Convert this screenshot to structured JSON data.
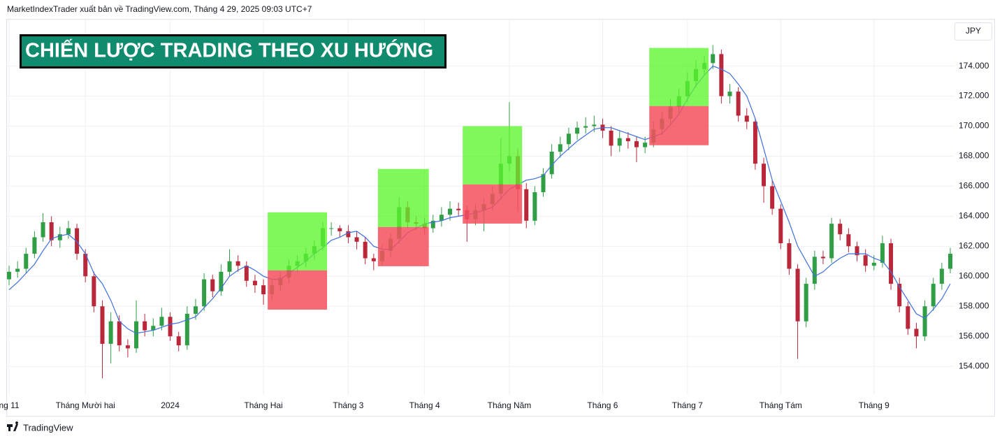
{
  "header": {
    "attribution": "MarketIndexTrader xuất bản về TradingView.com, Tháng 4 29, 2025 09:03 UTC+7"
  },
  "footer": {
    "logo_text": "TradingView"
  },
  "chart_data": {
    "type": "candlestick",
    "title": "CHIẾN LƯỢC TRADING THEO XU HƯỚNG",
    "currency": "JPY",
    "up_color": "#2f9e44",
    "down_color": "#b8283a",
    "ylim": [
      152.1,
      177.1
    ],
    "yticks": [
      {
        "value": 154,
        "label": "154.000"
      },
      {
        "value": 156,
        "label": "156.000"
      },
      {
        "value": 158,
        "label": "158.000"
      },
      {
        "value": 160,
        "label": "160.000"
      },
      {
        "value": 162,
        "label": "162.000"
      },
      {
        "value": 164,
        "label": "164.000"
      },
      {
        "value": 166,
        "label": "166.000"
      },
      {
        "value": 168,
        "label": "168.000"
      },
      {
        "value": 170,
        "label": "170.000"
      },
      {
        "value": 172,
        "label": "172.000"
      },
      {
        "value": 174,
        "label": "174.000"
      }
    ],
    "grid": true,
    "categories": [
      "ng 11",
      null,
      null,
      null,
      null,
      null,
      null,
      null,
      null,
      "Tháng Mười hai",
      null,
      null,
      null,
      null,
      null,
      null,
      null,
      null,
      null,
      "2024",
      null,
      null,
      null,
      null,
      null,
      null,
      null,
      null,
      null,
      null,
      "Tháng Hai",
      null,
      null,
      null,
      null,
      null,
      null,
      null,
      null,
      null,
      "Tháng 3",
      null,
      null,
      null,
      null,
      null,
      null,
      null,
      null,
      "Tháng 4",
      null,
      null,
      null,
      null,
      null,
      null,
      null,
      null,
      null,
      "Tháng Năm",
      null,
      null,
      null,
      null,
      null,
      null,
      null,
      null,
      null,
      null,
      "Tháng 6",
      null,
      null,
      null,
      null,
      null,
      null,
      null,
      null,
      null,
      "Tháng 7",
      null,
      null,
      null,
      null,
      null,
      null,
      null,
      null,
      null,
      null,
      "Tháng Tám",
      null,
      null,
      null,
      null,
      null,
      null,
      null,
      null,
      null,
      null,
      "Tháng 9",
      null,
      null,
      null,
      null,
      null,
      null,
      null,
      null,
      null
    ],
    "ohlc": [
      [
        159.8,
        160.7,
        159.4,
        160.3
      ],
      [
        160.3,
        161.0,
        159.9,
        160.5
      ],
      [
        160.5,
        161.9,
        160.2,
        161.5
      ],
      [
        161.5,
        163.0,
        161.2,
        162.6
      ],
      [
        162.6,
        164.2,
        162.3,
        163.6
      ],
      [
        163.6,
        164.0,
        162.0,
        162.4
      ],
      [
        162.4,
        163.3,
        161.9,
        162.8
      ],
      [
        162.8,
        163.7,
        162.5,
        163.2
      ],
      [
        163.2,
        163.5,
        161.1,
        161.5
      ],
      [
        161.5,
        161.8,
        159.6,
        160.0
      ],
      [
        160.0,
        160.3,
        157.6,
        158.0
      ],
      [
        158.0,
        158.4,
        153.2,
        155.5
      ],
      [
        155.5,
        157.6,
        154.2,
        157.0
      ],
      [
        157.0,
        157.4,
        155.0,
        155.4
      ],
      [
        155.4,
        155.8,
        154.6,
        155.2
      ],
      [
        155.2,
        158.4,
        154.9,
        157.0
      ],
      [
        157.0,
        157.5,
        156.0,
        156.4
      ],
      [
        156.4,
        157.2,
        156.0,
        156.7
      ],
      [
        156.7,
        157.9,
        156.4,
        157.3
      ],
      [
        157.3,
        157.6,
        155.7,
        156.0
      ],
      [
        156.0,
        156.3,
        155.0,
        155.4
      ],
      [
        155.4,
        158.0,
        155.1,
        157.5
      ],
      [
        157.5,
        158.5,
        157.1,
        158.0
      ],
      [
        158.0,
        160.2,
        157.7,
        159.8
      ],
      [
        159.8,
        160.1,
        158.6,
        159.0
      ],
      [
        159.0,
        160.8,
        158.7,
        160.3
      ],
      [
        160.3,
        161.8,
        160.0,
        161.0
      ],
      [
        161.0,
        161.4,
        160.3,
        160.7
      ],
      [
        160.7,
        161.0,
        159.3,
        159.7
      ],
      [
        159.7,
        160.1,
        158.9,
        159.4
      ],
      [
        159.4,
        159.8,
        158.1,
        158.8
      ],
      [
        158.8,
        159.8,
        158.4,
        159.4
      ],
      [
        159.4,
        160.3,
        159.0,
        159.9
      ],
      [
        159.9,
        161.1,
        159.5,
        160.7
      ],
      [
        160.7,
        161.4,
        160.3,
        161.0
      ],
      [
        161.0,
        161.9,
        160.6,
        161.5
      ],
      [
        161.5,
        162.4,
        161.1,
        162.0
      ],
      [
        162.0,
        163.6,
        161.7,
        163.2
      ],
      [
        163.2,
        163.6,
        162.7,
        163.2
      ],
      [
        163.2,
        163.4,
        162.6,
        163.0
      ],
      [
        163.0,
        163.4,
        162.2,
        162.6
      ],
      [
        162.6,
        163.0,
        161.8,
        162.3
      ],
      [
        162.3,
        162.6,
        160.8,
        161.2
      ],
      [
        161.2,
        161.5,
        160.4,
        161.0
      ],
      [
        161.0,
        162.1,
        160.7,
        161.7
      ],
      [
        161.7,
        162.9,
        161.3,
        162.5
      ],
      [
        162.5,
        165.3,
        162.2,
        164.6
      ],
      [
        164.6,
        165.0,
        163.2,
        163.6
      ],
      [
        163.6,
        164.0,
        163.1,
        163.5
      ],
      [
        163.5,
        163.9,
        162.8,
        163.2
      ],
      [
        163.2,
        164.1,
        162.9,
        163.7
      ],
      [
        163.7,
        164.6,
        163.3,
        164.1
      ],
      [
        164.1,
        165.0,
        163.7,
        164.5
      ],
      [
        164.5,
        164.9,
        164.0,
        164.4
      ],
      [
        164.4,
        164.7,
        162.3,
        163.8
      ],
      [
        163.8,
        164.8,
        163.4,
        164.4
      ],
      [
        164.4,
        165.2,
        163.0,
        164.8
      ],
      [
        164.8,
        166.0,
        164.4,
        165.5
      ],
      [
        165.5,
        169.2,
        165.1,
        167.5
      ],
      [
        167.5,
        171.6,
        167.0,
        168.0
      ],
      [
        168.0,
        168.5,
        164.3,
        165.8
      ],
      [
        165.8,
        166.2,
        163.2,
        163.7
      ],
      [
        163.7,
        166.0,
        163.4,
        165.6
      ],
      [
        165.6,
        167.2,
        165.3,
        166.8
      ],
      [
        166.8,
        168.8,
        166.5,
        168.3
      ],
      [
        168.3,
        169.3,
        167.9,
        168.8
      ],
      [
        168.8,
        169.9,
        168.4,
        169.5
      ],
      [
        169.5,
        170.3,
        169.1,
        169.9
      ],
      [
        169.9,
        170.6,
        169.5,
        170.0
      ],
      [
        170.0,
        170.7,
        169.6,
        170.1
      ],
      [
        170.1,
        170.5,
        169.2,
        169.7
      ],
      [
        169.7,
        170.0,
        168.0,
        168.7
      ],
      [
        168.7,
        169.7,
        168.3,
        169.2
      ],
      [
        169.2,
        169.6,
        168.5,
        169.0
      ],
      [
        169.0,
        169.3,
        167.6,
        168.6
      ],
      [
        168.6,
        169.3,
        168.2,
        168.9
      ],
      [
        168.9,
        170.3,
        168.6,
        169.8
      ],
      [
        169.8,
        171.0,
        169.4,
        170.5
      ],
      [
        170.5,
        171.8,
        170.1,
        171.3
      ],
      [
        171.3,
        172.5,
        170.9,
        172.0
      ],
      [
        172.0,
        173.6,
        171.6,
        173.0
      ],
      [
        173.0,
        174.4,
        172.6,
        173.8
      ],
      [
        173.8,
        174.7,
        173.4,
        174.2
      ],
      [
        174.2,
        175.4,
        173.8,
        174.8
      ],
      [
        174.8,
        175.1,
        171.5,
        172.0
      ],
      [
        172.0,
        172.8,
        171.5,
        172.3
      ],
      [
        172.3,
        172.6,
        170.3,
        170.7
      ],
      [
        170.7,
        171.2,
        169.8,
        170.3
      ],
      [
        170.3,
        170.5,
        167.1,
        167.5
      ],
      [
        167.5,
        167.9,
        164.9,
        166.0
      ],
      [
        166.0,
        166.4,
        164.1,
        164.5
      ],
      [
        164.5,
        164.8,
        161.8,
        162.2
      ],
      [
        162.2,
        162.5,
        160.1,
        160.5
      ],
      [
        160.5,
        160.8,
        154.5,
        157.0
      ],
      [
        157.0,
        159.9,
        156.6,
        159.5
      ],
      [
        159.5,
        161.7,
        159.1,
        161.3
      ],
      [
        161.3,
        161.7,
        160.8,
        161.2
      ],
      [
        161.2,
        163.9,
        160.9,
        163.5
      ],
      [
        163.5,
        163.8,
        162.4,
        162.8
      ],
      [
        162.8,
        163.2,
        161.6,
        162.0
      ],
      [
        162.0,
        162.3,
        161.0,
        161.4
      ],
      [
        161.4,
        161.8,
        160.3,
        160.7
      ],
      [
        160.7,
        161.4,
        160.4,
        160.9
      ],
      [
        160.9,
        162.7,
        160.6,
        162.2
      ],
      [
        162.2,
        162.5,
        159.1,
        159.5
      ],
      [
        159.5,
        159.9,
        157.6,
        158.0
      ],
      [
        158.0,
        158.3,
        156.1,
        156.5
      ],
      [
        156.5,
        156.9,
        155.2,
        156.0
      ],
      [
        156.0,
        158.4,
        155.7,
        158.0
      ],
      [
        158.0,
        159.9,
        157.7,
        159.5
      ],
      [
        159.5,
        160.9,
        159.1,
        160.5
      ],
      [
        160.5,
        161.9,
        160.2,
        161.5
      ]
    ],
    "ma": {
      "color": "#3f6fe0",
      "values": [
        159.1,
        159.6,
        160.2,
        160.8,
        161.7,
        162.5,
        162.7,
        162.8,
        162.3,
        161.5,
        160.2,
        159.5,
        158.4,
        157.0,
        156.5,
        156.2,
        156.3,
        156.4,
        156.6,
        156.8,
        156.9,
        157.1,
        157.3,
        157.9,
        158.5,
        159.2,
        160.0,
        160.4,
        160.7,
        160.4,
        160.0,
        159.8,
        159.8,
        160.2,
        160.6,
        161.0,
        161.5,
        161.9,
        162.4,
        162.6,
        162.9,
        163.0,
        162.6,
        162.0,
        161.8,
        161.8,
        162.3,
        162.9,
        163.2,
        163.5,
        163.6,
        163.7,
        163.9,
        164.0,
        164.1,
        164.2,
        164.4,
        164.6,
        165.2,
        165.8,
        166.1,
        166.4,
        166.5,
        166.7,
        167.4,
        168.0,
        168.5,
        169.0,
        169.4,
        169.8,
        169.9,
        169.9,
        169.7,
        169.5,
        169.3,
        169.1,
        169.3,
        169.5,
        170.1,
        170.8,
        171.8,
        172.7,
        173.4,
        174.0,
        173.8,
        173.5,
        172.8,
        172.0,
        170.5,
        168.5,
        166.4,
        165.0,
        163.6,
        162.0,
        161.0,
        160.0,
        160.3,
        160.8,
        161.2,
        161.5,
        161.5,
        161.5,
        161.2,
        161.0,
        160.3,
        159.3,
        158.4,
        157.5,
        157.2,
        157.8,
        158.5,
        159.5
      ]
    },
    "target_color": "#5cf52c",
    "stop_color": "#f4505e",
    "positions": [
      {
        "start": 31,
        "end": 37,
        "target": 164.26,
        "entry": 160.39,
        "stop": 157.78
      },
      {
        "start": 44,
        "end": 49,
        "target": 167.15,
        "entry": 163.28,
        "stop": 160.67
      },
      {
        "start": 54,
        "end": 60,
        "target": 170.0,
        "entry": 166.12,
        "stop": 163.51
      },
      {
        "start": 76,
        "end": 82,
        "target": 175.21,
        "entry": 171.34,
        "stop": 168.73
      }
    ]
  }
}
